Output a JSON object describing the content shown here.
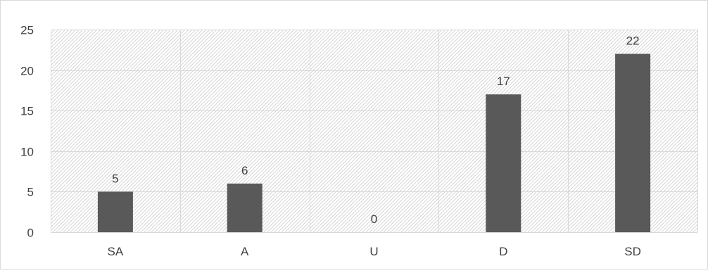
{
  "chart_data": {
    "type": "bar",
    "categories": [
      "SA",
      "A",
      "U",
      "D",
      "SD"
    ],
    "values": [
      5,
      6,
      0,
      17,
      22
    ],
    "data_labels": [
      "5",
      "6",
      "0",
      "17",
      "22"
    ],
    "y_ticks": [
      "0",
      "5",
      "10",
      "15",
      "20",
      "25"
    ],
    "ylim": [
      0,
      25
    ],
    "grid": true,
    "legend": "none",
    "colors": {
      "bar": "#595959",
      "grid": "#d9d9d9",
      "hatch": "#d0d0d0",
      "text": "#404040",
      "border": "#d9d9d9"
    }
  }
}
